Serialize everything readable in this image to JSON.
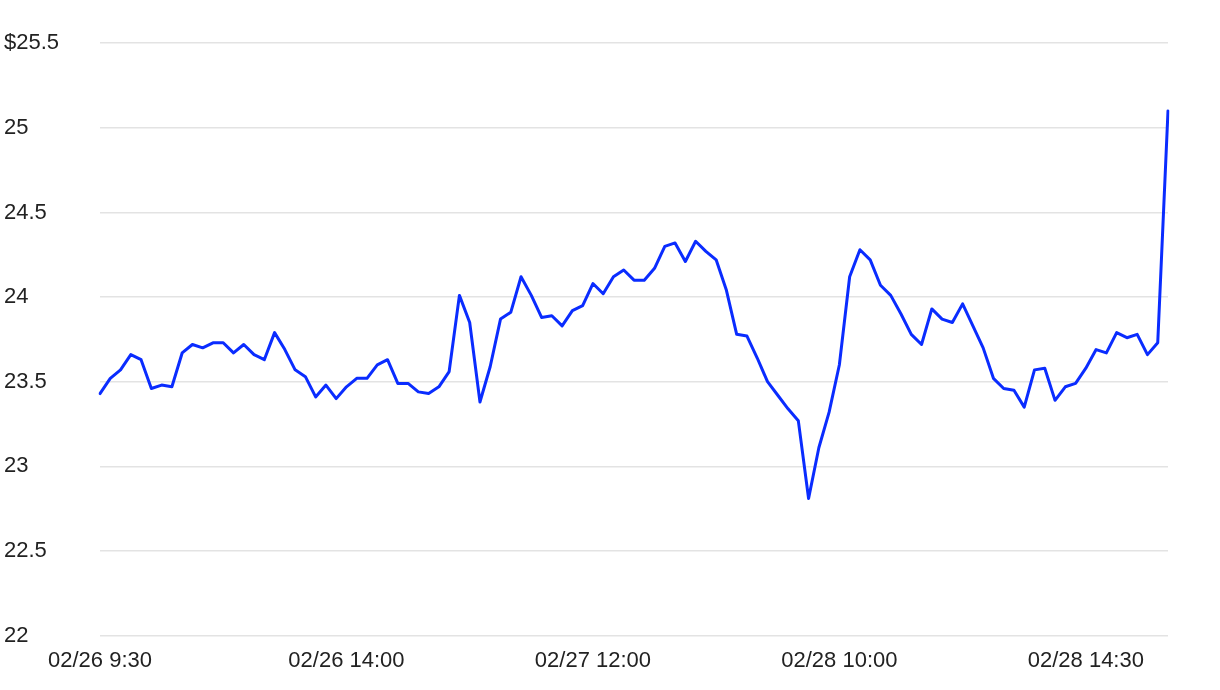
{
  "chart_data": {
    "type": "line",
    "categories": [
      "02/26 9:30",
      null,
      null,
      null,
      null,
      null,
      null,
      null,
      null,
      null,
      null,
      null,
      null,
      null,
      null,
      null,
      null,
      null,
      null,
      null,
      null,
      null,
      null,
      null,
      "02/26 14:00",
      null,
      null,
      null,
      null,
      null,
      null,
      null,
      null,
      null,
      null,
      null,
      null,
      null,
      null,
      null,
      null,
      null,
      null,
      null,
      null,
      null,
      null,
      null,
      "02/27 12:00",
      null,
      null,
      null,
      null,
      null,
      null,
      null,
      null,
      null,
      null,
      null,
      null,
      null,
      null,
      null,
      null,
      null,
      null,
      null,
      null,
      null,
      null,
      null,
      "02/28 10:00",
      null,
      null,
      null,
      null,
      null,
      null,
      null,
      null,
      null,
      null,
      null,
      null,
      null,
      null,
      null,
      null,
      null,
      null,
      null,
      null,
      null,
      null,
      null,
      "02/28 14:30",
      null,
      null,
      null,
      null,
      null,
      null,
      null,
      null
    ],
    "values": [
      23.43,
      23.52,
      23.57,
      23.66,
      23.63,
      23.46,
      23.48,
      23.47,
      23.67,
      23.72,
      23.7,
      23.73,
      23.73,
      23.67,
      23.72,
      23.66,
      23.63,
      23.79,
      23.69,
      23.57,
      23.53,
      23.41,
      23.48,
      23.4,
      23.47,
      23.52,
      23.52,
      23.6,
      23.63,
      23.49,
      23.49,
      23.44,
      23.43,
      23.47,
      23.56,
      24.01,
      23.85,
      23.38,
      23.59,
      23.87,
      23.91,
      24.12,
      24.01,
      23.88,
      23.89,
      23.83,
      23.92,
      23.95,
      24.08,
      24.02,
      24.12,
      24.16,
      24.1,
      24.1,
      24.17,
      24.3,
      24.32,
      24.21,
      24.33,
      24.27,
      24.22,
      24.04,
      23.78,
      23.77,
      23.64,
      23.5,
      23.42,
      23.34,
      23.27,
      22.81,
      23.11,
      23.32,
      23.6,
      24.12,
      24.28,
      24.22,
      24.07,
      24.01,
      23.9,
      23.78,
      23.72,
      23.93,
      23.87,
      23.85,
      23.96,
      23.83,
      23.7,
      23.52,
      23.46,
      23.45,
      23.35,
      23.57,
      23.58,
      23.39,
      23.47,
      23.49,
      23.58,
      23.69,
      23.67,
      23.79,
      23.76,
      23.78,
      23.66,
      23.73,
      25.1
    ],
    "color": "#0a2cff",
    "ylim": [
      22,
      25.5
    ],
    "yticks": [
      22,
      22.5,
      23,
      23.5,
      24,
      24.5,
      25,
      {
        "value": 25.5,
        "label": "$25.5"
      }
    ],
    "grid": "y",
    "line_style": "solid",
    "marker": "none"
  }
}
